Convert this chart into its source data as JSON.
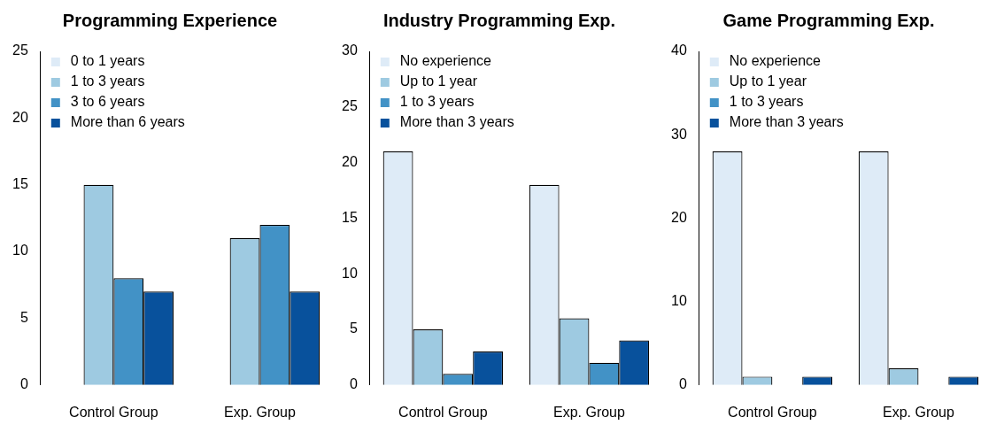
{
  "chart_data": [
    {
      "type": "bar",
      "title": "Programming Experience",
      "categories": [
        "Control Group",
        "Exp. Group"
      ],
      "ylim": [
        0,
        25
      ],
      "yticks": [
        0,
        5,
        10,
        15,
        20,
        25
      ],
      "grid": false,
      "legend": "top left",
      "series": [
        {
          "name": "0 to 1 years",
          "color": "#deebf7",
          "values": [
            0,
            0
          ]
        },
        {
          "name": "1 to 3 years",
          "color": "#9ecae1",
          "values": [
            15,
            11
          ]
        },
        {
          "name": "3 to 6 years",
          "color": "#4292c6",
          "values": [
            8,
            12
          ]
        },
        {
          "name": "More than 6 years",
          "color": "#08519c",
          "values": [
            7,
            7
          ]
        }
      ]
    },
    {
      "type": "bar",
      "title": "Industry Programming Exp.",
      "categories": [
        "Control Group",
        "Exp. Group"
      ],
      "ylim": [
        0,
        30
      ],
      "yticks": [
        0,
        5,
        10,
        15,
        20,
        25,
        30
      ],
      "grid": false,
      "legend": "top left",
      "series": [
        {
          "name": "No experience",
          "color": "#deebf7",
          "values": [
            21,
            18
          ]
        },
        {
          "name": "Up to 1 year",
          "color": "#9ecae1",
          "values": [
            5,
            6
          ]
        },
        {
          "name": "1 to 3 years",
          "color": "#4292c6",
          "values": [
            1,
            2
          ]
        },
        {
          "name": "More than 3 years",
          "color": "#08519c",
          "values": [
            3,
            4
          ]
        }
      ]
    },
    {
      "type": "bar",
      "title": "Game Programming Exp.",
      "categories": [
        "Control Group",
        "Exp. Group"
      ],
      "ylim": [
        0,
        40
      ],
      "yticks": [
        0,
        10,
        20,
        30,
        40
      ],
      "grid": false,
      "legend": "top left",
      "series": [
        {
          "name": "No experience",
          "color": "#deebf7",
          "values": [
            28,
            28
          ]
        },
        {
          "name": "Up to 1 year",
          "color": "#9ecae1",
          "values": [
            1,
            2
          ]
        },
        {
          "name": "1 to 3 years",
          "color": "#4292c6",
          "values": [
            0,
            0
          ]
        },
        {
          "name": "More than 3 years",
          "color": "#08519c",
          "values": [
            1,
            1
          ]
        }
      ]
    }
  ]
}
